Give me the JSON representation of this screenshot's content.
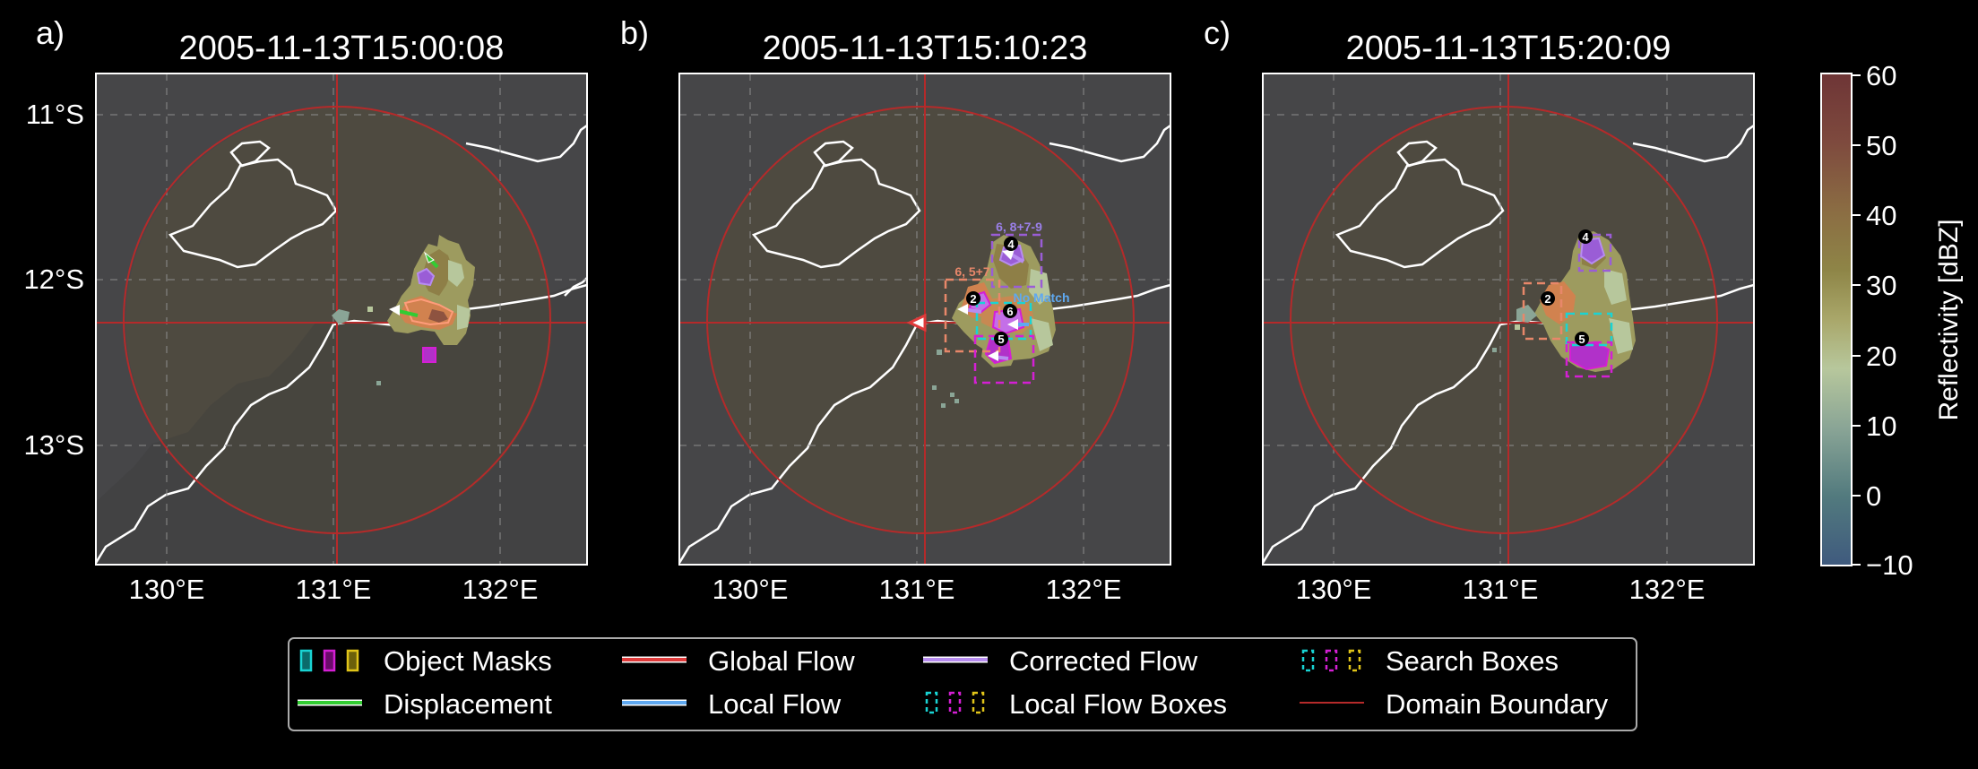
{
  "panels": [
    {
      "letter": "a)",
      "title": "2005-11-13T15:00:08"
    },
    {
      "letter": "b)",
      "title": "2005-11-13T15:10:23"
    },
    {
      "letter": "c)",
      "title": "2005-11-13T15:20:09"
    }
  ],
  "lat_ticks": [
    "11°S",
    "12°S",
    "13°S"
  ],
  "lon_ticks": [
    "130°E",
    "131°E",
    "132°E"
  ],
  "colorbar": {
    "label": "Reflectivity [dBZ]",
    "ticks": [
      "60",
      "50",
      "40",
      "30",
      "20",
      "10",
      "0",
      "−10"
    ]
  },
  "legend": {
    "object_masks": "Object Masks",
    "displacement": "Displacement",
    "global_flow": "Global Flow",
    "local_flow": "Local Flow",
    "corrected_flow": "Corrected Flow",
    "local_flow_boxes": "Local Flow Boxes",
    "search_boxes": "Search Boxes",
    "domain_boundary": "Domain Boundary"
  },
  "annotations": {
    "b_obj_4": "4",
    "b_obj_2": "2",
    "b_obj_6": "6",
    "b_obj_5": "5",
    "b_box_top": "6, 8+7-9",
    "b_box_left": "6, 5+7",
    "b_no_match": "No Match",
    "c_obj_4": "4",
    "c_obj_2": "2",
    "c_obj_5": "5"
  },
  "colors": {
    "background": "#000000",
    "map_sea": "#464648",
    "map_domain": "#4e4a40",
    "domain_boundary": "#b52a2a",
    "global_flow": "#e03a3a",
    "local_flow": "#5fa8f0",
    "corrected_flow": "#b78cf0",
    "displacement": "#33cc33",
    "mask_cyan": "#19d4d4",
    "mask_magenta": "#d41fd4",
    "mask_yellow": "#e0c419"
  }
}
